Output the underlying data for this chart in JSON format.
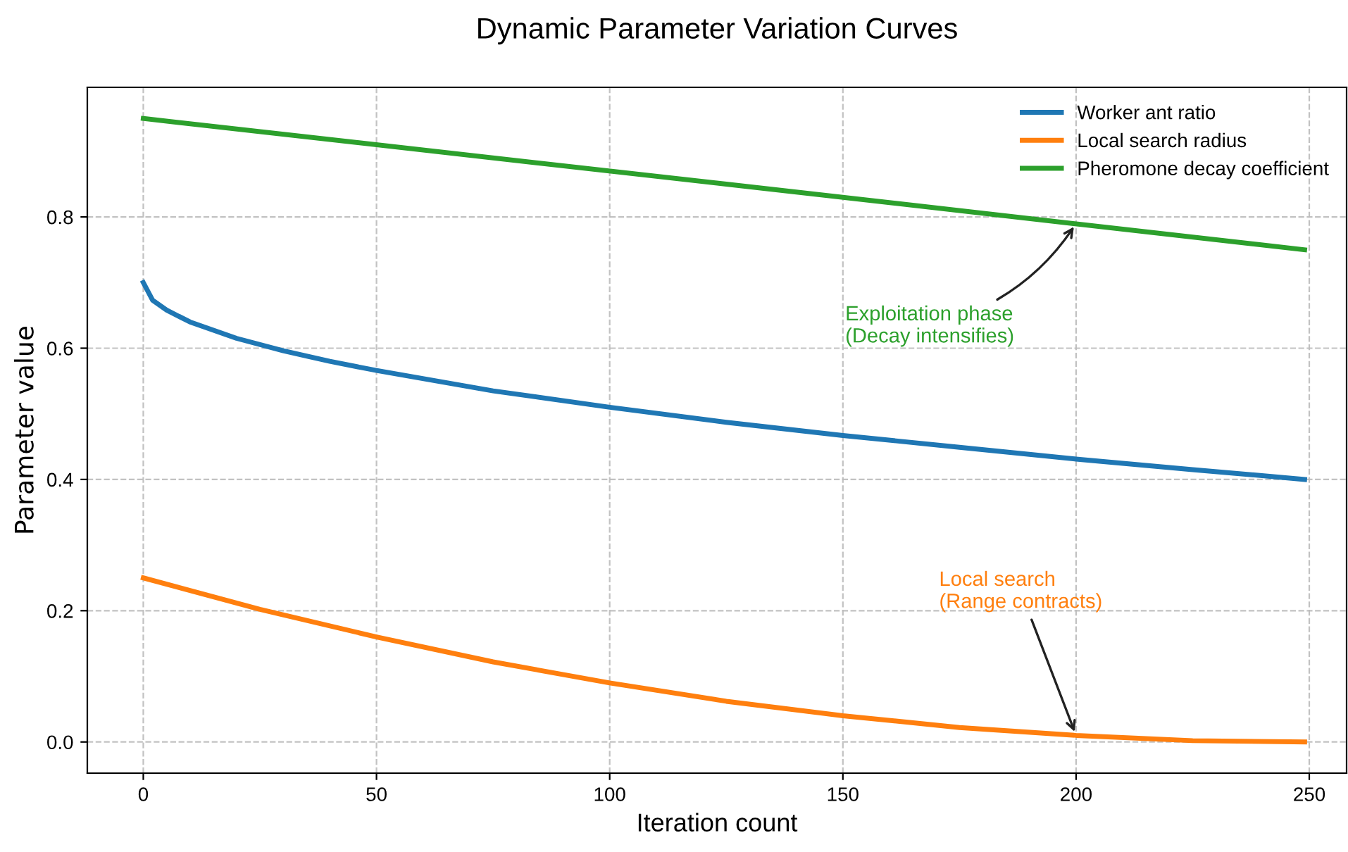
{
  "chart_data": {
    "type": "line",
    "title": "Dynamic Parameter Variation Curves",
    "xlabel": "Iteration count",
    "ylabel": "Parameter value",
    "xlim": [
      -12,
      258
    ],
    "ylim": [
      -0.0475,
      0.9975
    ],
    "xticks": [
      0,
      50,
      100,
      150,
      200,
      250
    ],
    "yticks": [
      {
        "value": 0,
        "label": "0.0"
      },
      0.2,
      0.4,
      0.6,
      0.8
    ],
    "grid": true,
    "legend": "top right",
    "line_style": "solid",
    "marker": "none",
    "series": [
      {
        "name": "Worker ant ratio",
        "color": "#1f77b4",
        "x": [
          0,
          2,
          5,
          10,
          20,
          30,
          40,
          50,
          75,
          100,
          125,
          150,
          175,
          200,
          225,
          249
        ],
        "values": [
          0.7,
          0.673,
          0.658,
          0.64,
          0.615,
          0.596,
          0.58,
          0.566,
          0.535,
          0.51,
          0.487,
          0.467,
          0.449,
          0.431,
          0.415,
          0.4
        ]
      },
      {
        "name": "Local search radius",
        "color": "#ff7f0e",
        "x": [
          0,
          25,
          50,
          75,
          100,
          125,
          150,
          175,
          200,
          225,
          249
        ],
        "values": [
          0.25,
          0.202,
          0.16,
          0.122,
          0.09,
          0.062,
          0.04,
          0.022,
          0.01,
          0.002,
          0.0
        ]
      },
      {
        "name": "Pheromone decay coefficient",
        "color": "#2ca02c",
        "x": [
          0,
          125,
          249
        ],
        "values": [
          0.95,
          0.85,
          0.75
        ]
      }
    ],
    "annotations": [
      {
        "text": "Exploitation phase\n(Decay intensifies)",
        "x": 200,
        "y": 0.79
      },
      {
        "text": "Local search\n(Range contracts)",
        "x": 200,
        "y": 0.01
      }
    ]
  }
}
